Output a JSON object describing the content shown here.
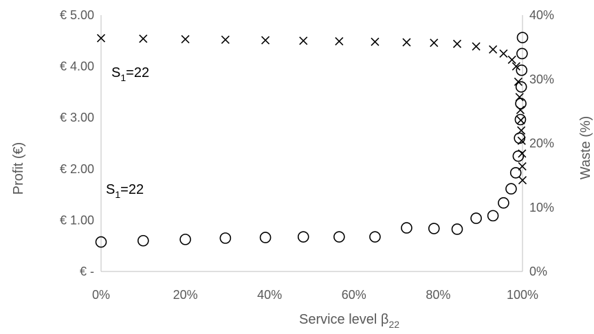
{
  "chart_data": {
    "type": "scatter",
    "title": "",
    "xlabel": "Service level β",
    "xlabel_sub": "22",
    "ylabel": "Profit (€)",
    "y2label": "Waste (%)",
    "xlim": [
      0,
      1
    ],
    "ylim": [
      0,
      5
    ],
    "y2lim": [
      0,
      0.4
    ],
    "x_ticks": [
      0,
      0.2,
      0.4,
      0.6,
      0.8,
      1.0
    ],
    "x_tick_labels": [
      "0%",
      "20%",
      "40%",
      "60%",
      "80%",
      "100%"
    ],
    "y_ticks": [
      0,
      1,
      2,
      3,
      4,
      5
    ],
    "y_tick_labels": [
      "€ -",
      "€ 1.00",
      "€ 2.00",
      "€ 3.00",
      "€ 4.00",
      "€ 5.00"
    ],
    "y2_ticks": [
      0,
      0.1,
      0.2,
      0.3,
      0.4
    ],
    "y2_tick_labels": [
      "0%",
      "10%",
      "20%",
      "30%",
      "40%"
    ],
    "grid": false,
    "legend": "none",
    "annotations": [
      {
        "text": "S",
        "sub": "1",
        "rest": "=22",
        "series": "profit"
      },
      {
        "text": "S",
        "sub": "1",
        "rest": "=22",
        "series": "waste"
      }
    ],
    "series": [
      {
        "marker": "x",
        "axis": "left",
        "x": [
          0.0,
          0.1,
          0.2,
          0.295,
          0.39,
          0.48,
          0.565,
          0.65,
          0.725,
          0.79,
          0.845,
          0.89,
          0.93,
          0.955,
          0.975,
          0.985,
          0.99,
          0.993,
          0.995,
          0.996,
          0.997,
          0.998,
          0.999,
          0.9995,
          1.0
        ],
        "y": [
          4.55,
          4.54,
          4.53,
          4.52,
          4.51,
          4.5,
          4.49,
          4.48,
          4.47,
          4.46,
          4.44,
          4.39,
          4.33,
          4.25,
          4.13,
          4.0,
          3.7,
          3.4,
          3.15,
          2.95,
          2.75,
          2.55,
          2.3,
          2.05,
          1.78
        ]
      },
      {
        "marker": "circle",
        "axis": "right",
        "x": [
          0.0,
          0.1,
          0.2,
          0.295,
          0.39,
          0.48,
          0.565,
          0.65,
          0.725,
          0.79,
          0.845,
          0.89,
          0.93,
          0.955,
          0.973,
          0.984,
          0.99,
          0.993,
          0.995,
          0.996,
          0.997,
          0.998,
          0.999,
          1.0
        ],
        "y": [
          0.046,
          0.048,
          0.05,
          0.052,
          0.053,
          0.054,
          0.054,
          0.054,
          0.068,
          0.067,
          0.066,
          0.083,
          0.087,
          0.107,
          0.129,
          0.154,
          0.18,
          0.208,
          0.237,
          0.262,
          0.288,
          0.314,
          0.34,
          0.365
        ]
      }
    ]
  }
}
